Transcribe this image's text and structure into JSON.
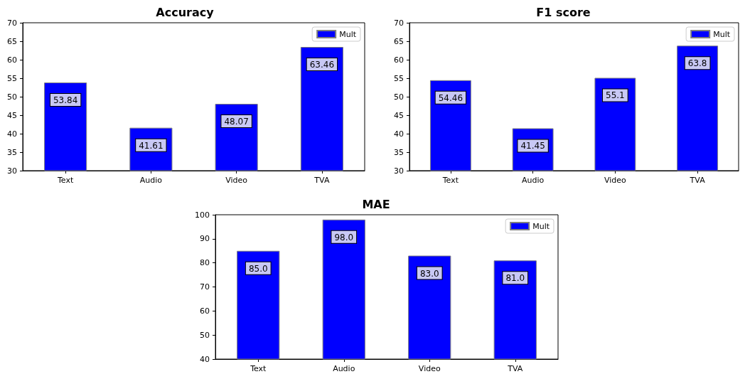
{
  "chart_data": [
    {
      "type": "bar",
      "title": "Accuracy",
      "categories": [
        "Text",
        "Audio",
        "Video",
        "TVA"
      ],
      "series": [
        {
          "name": "Mult",
          "color": "#0000ff",
          "values": [
            53.84,
            41.61,
            48.07,
            63.46
          ],
          "value_labels": [
            "53.84",
            "41.61",
            "48.07",
            "63.46"
          ]
        }
      ],
      "ylim": [
        30,
        70
      ],
      "yticks": [
        30,
        35,
        40,
        45,
        50,
        55,
        60,
        65,
        70
      ],
      "grid": false,
      "legend": "top right"
    },
    {
      "type": "bar",
      "title": "F1 score",
      "categories": [
        "Text",
        "Audio",
        "Video",
        "TVA"
      ],
      "series": [
        {
          "name": "Mult",
          "color": "#0000ff",
          "values": [
            54.46,
            41.45,
            55.1,
            63.8
          ],
          "value_labels": [
            "54.46",
            "41.45",
            "55.1",
            "63.8"
          ]
        }
      ],
      "ylim": [
        30,
        70
      ],
      "yticks": [
        30,
        35,
        40,
        45,
        50,
        55,
        60,
        65,
        70
      ],
      "grid": false,
      "legend": "top right"
    },
    {
      "type": "bar",
      "title": "MAE",
      "categories": [
        "Text",
        "Audio",
        "Video",
        "TVA"
      ],
      "series": [
        {
          "name": "Mult",
          "color": "#0000ff",
          "values": [
            85.0,
            98.0,
            83.0,
            81.0
          ],
          "value_labels": [
            "85.0",
            "98.0",
            "83.0",
            "81.0"
          ]
        }
      ],
      "ylim": [
        40,
        100
      ],
      "yticks": [
        40,
        50,
        60,
        70,
        80,
        90,
        100
      ],
      "grid": false,
      "legend": "top right"
    }
  ]
}
